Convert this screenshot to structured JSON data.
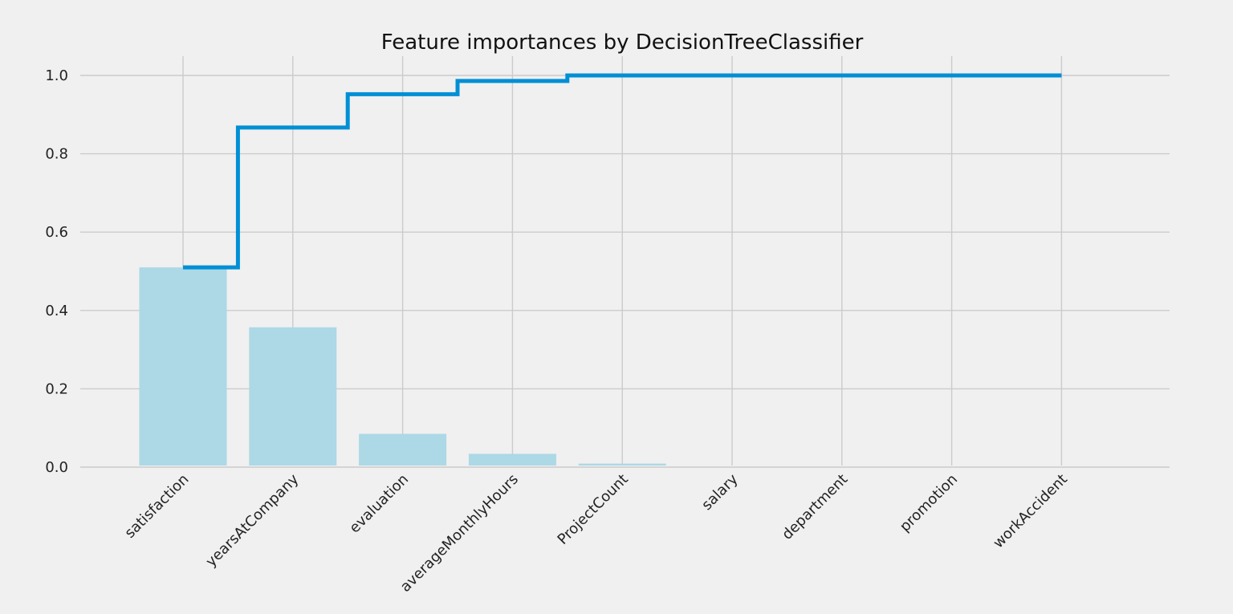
{
  "chart_data": {
    "type": "bar",
    "title": "Feature importances by DecisionTreeClassifier",
    "xlabel": "",
    "ylabel": "",
    "ylim": [
      0,
      1.05
    ],
    "yticks": [
      "0.0",
      "0.2",
      "0.4",
      "0.6",
      "0.8",
      "1.0"
    ],
    "grid": true,
    "categories": [
      "satisfaction",
      "yearsAtCompany",
      "evaluation",
      "averageMonthlyHours",
      "ProjectCount",
      "salary",
      "department",
      "promotion",
      "workAccident"
    ],
    "series": [
      {
        "type": "bar",
        "values": [
          0.51,
          0.357,
          0.085,
          0.034,
          0.009,
          0.0,
          0.0,
          0.0,
          0.0
        ],
        "color": "#add8e6"
      },
      {
        "type": "step",
        "values": [
          0.51,
          0.867,
          0.952,
          0.986,
          1.0,
          1.0,
          1.0,
          1.0,
          1.0
        ],
        "color": "#008fd5"
      }
    ]
  }
}
